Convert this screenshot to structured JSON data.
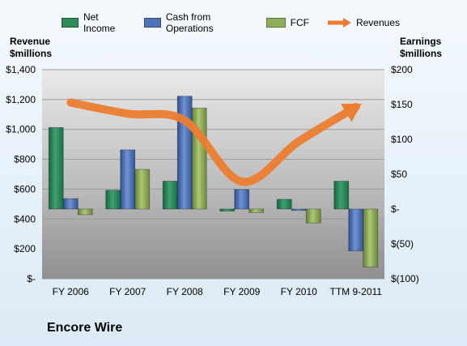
{
  "chart_data": {
    "type": "bar",
    "categories": [
      "FY 2006",
      "FY 2007",
      "FY 2008",
      "FY 2009",
      "FY 2010",
      "TTM 9-2011"
    ],
    "bar_series": [
      {
        "name": "Net Income",
        "values": [
          117,
          27,
          40,
          -3,
          14,
          40
        ],
        "color": "#2e8b57"
      },
      {
        "name": "Cash from Operations",
        "values": [
          15,
          85,
          162,
          28,
          -2,
          -60
        ],
        "color": "#4f74b7"
      },
      {
        "name": "FCF",
        "values": [
          -8,
          57,
          145,
          -5,
          -20,
          -83
        ],
        "color": "#8fb05a"
      }
    ],
    "line_series": [
      {
        "name": "Revenues",
        "values": [
          1180,
          1105,
          1060,
          650,
          920,
          1150
        ],
        "color": "#ec7d31"
      }
    ],
    "ylabel_left": "Revenue $millions",
    "ylabel_right": "Earnings $millions",
    "ylim_left": [
      0,
      1400
    ],
    "ylim_right": [
      -100,
      200
    ],
    "yticks_left": [
      "$-",
      "$200",
      "$400",
      "$600",
      "$800",
      "$1,000",
      "$1,200",
      "$1,400"
    ],
    "yticks_right": [
      "$(100)",
      "$(50)",
      "$-",
      "$50",
      "$100",
      "$150",
      "$200"
    ],
    "grid": true,
    "legend_position": "top"
  },
  "legend": {
    "net_income": "Net Income",
    "cash_ops": "Cash from Operations",
    "fcf": "FCF",
    "revenues": "Revenues"
  },
  "axis_titles": {
    "left": "Revenue\n$millions",
    "right": "Earnings\n$millions"
  },
  "footer_title": "Encore Wire"
}
